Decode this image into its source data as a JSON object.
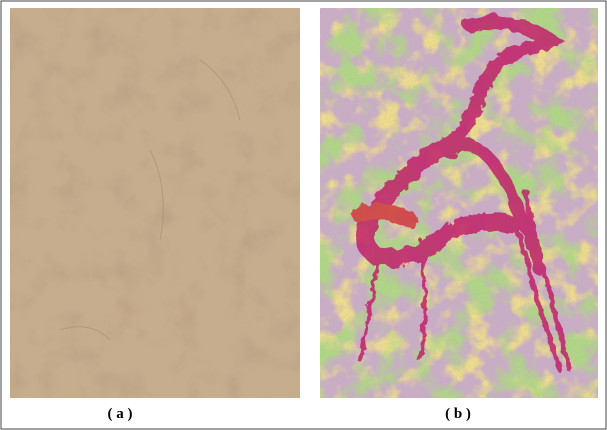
{
  "panels": [
    {
      "label": "( a )"
    },
    {
      "label": "( b )"
    }
  ]
}
